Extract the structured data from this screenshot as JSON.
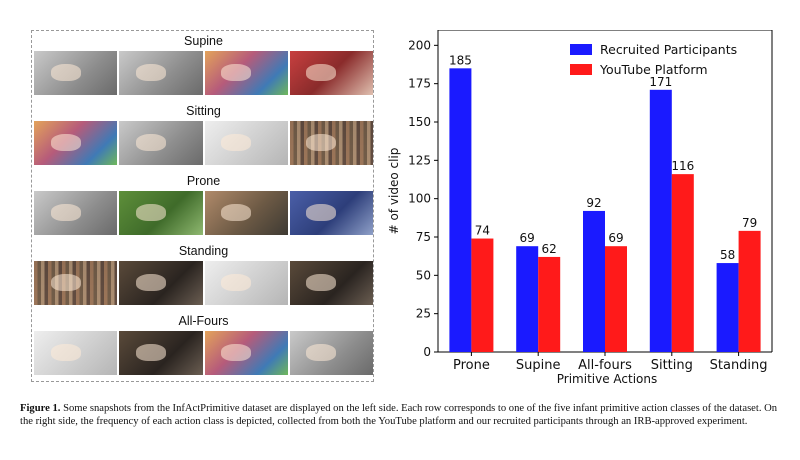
{
  "figure": {
    "panel": {
      "rows": [
        {
          "label": "Supine",
          "tones": [
            "gray",
            "gray",
            "bright",
            "red"
          ]
        },
        {
          "label": "Sitting",
          "tones": [
            "bright",
            "gray",
            "light",
            "pix"
          ]
        },
        {
          "label": "Prone",
          "tones": [
            "gray",
            "green",
            "warm",
            "blue"
          ]
        },
        {
          "label": "Standing",
          "tones": [
            "pix",
            "dark",
            "light",
            "dark"
          ]
        },
        {
          "label": "All-Fours",
          "tones": [
            "light",
            "dark",
            "bright",
            "gray"
          ]
        }
      ]
    },
    "caption": {
      "label": "Figure 1.",
      "text": "Some snapshots from the InfActPrimitive dataset are displayed on the left side. Each row corresponds to one of the five infant primitive action classes of the dataset.  On the right side, the frequency of each action class is depicted, collected from both the YouTube platform and our recruited participants through an IRB-approved experiment."
    }
  },
  "chart_data": {
    "type": "bar",
    "categories": [
      "Prone",
      "Supine",
      "All-fours",
      "Sitting",
      "Standing"
    ],
    "series": [
      {
        "name": "Recruited Participants",
        "color": "#1a1aff",
        "values": [
          185,
          69,
          92,
          171,
          58
        ]
      },
      {
        "name": "YouTube Platform",
        "color": "#ff1a1a",
        "values": [
          74,
          62,
          69,
          116,
          79
        ]
      }
    ],
    "xlabel": "Primitive Actions",
    "ylabel": "# of video clip",
    "ylim": [
      0,
      210
    ],
    "yticks": [
      0,
      25,
      50,
      75,
      100,
      125,
      150,
      175,
      200
    ],
    "legend": "top-right",
    "grid": false
  }
}
